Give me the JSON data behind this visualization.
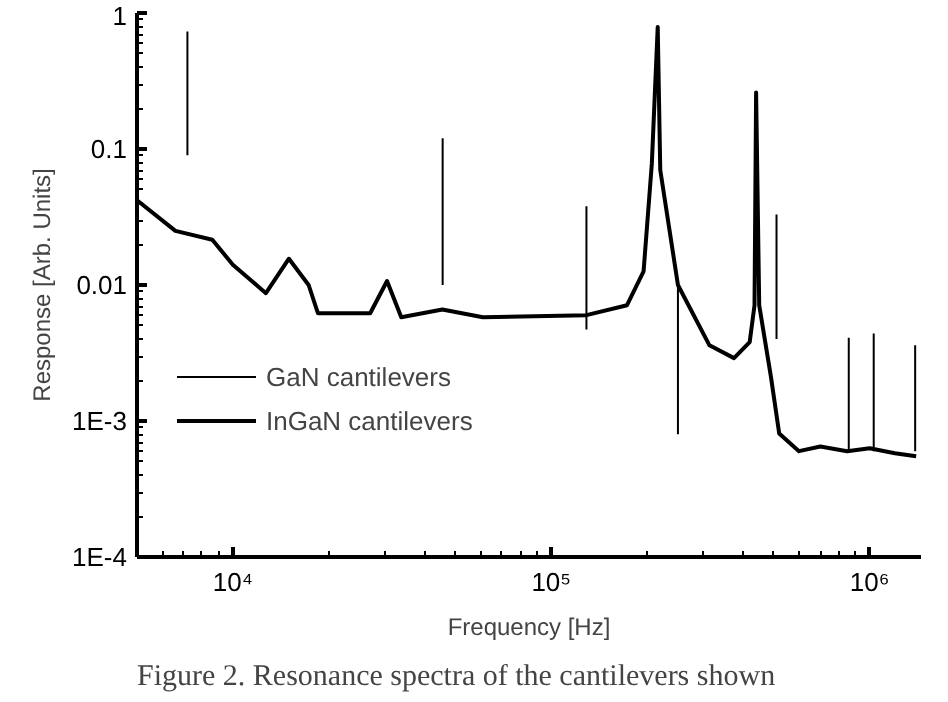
{
  "chart_data": {
    "type": "line",
    "xlabel": "Frequency [Hz]",
    "ylabel": "Response [Arb. Units]",
    "log": "xy",
    "grid": false,
    "legend": "left",
    "xlim": [
      5000,
      1450000
    ],
    "ylim": [
      0.0001,
      1
    ],
    "xticks": [
      {
        "value": 10000,
        "label": "10⁴"
      },
      {
        "value": 100000,
        "label": "10⁵"
      },
      {
        "value": 1000000,
        "label": "10⁶"
      }
    ],
    "yticks": [
      {
        "value": 0.0001,
        "label": "1E-4"
      },
      {
        "value": 0.001,
        "label": "1E-3"
      },
      {
        "value": 0.01,
        "label": "0.01"
      },
      {
        "value": 0.1,
        "label": "0.1"
      },
      {
        "value": 1,
        "label": "1"
      }
    ],
    "series": [
      {
        "name": "GaN cantilevers",
        "color": "#000000",
        "x": [
          7200,
          7200,
          null,
          45600,
          45600,
          null,
          129000,
          129000,
          null,
          250000,
          250000,
          null,
          510000,
          510000,
          null,
          860000,
          860000,
          null,
          1030000,
          1030000,
          null,
          1390000,
          1390000
        ],
        "values": [
          0.09,
          0.73,
          null,
          0.01,
          0.12,
          null,
          0.0047,
          0.038,
          null,
          0.0008,
          0.0106,
          null,
          0.004,
          0.033,
          null,
          0.0006,
          0.0041,
          null,
          0.0006,
          0.0044,
          null,
          0.0006,
          0.0036
        ]
      },
      {
        "name": "InGaN cantilevers",
        "color": "#000000",
        "x": [
          5000,
          6600,
          8620,
          10000,
          12700,
          15000,
          17300,
          18500,
          27000,
          30500,
          33800,
          45500,
          61000,
          129000,
          173000,
          195000,
          207000,
          216000,
          220000,
          250000,
          314000,
          375000,
          420000,
          435000,
          440000,
          450000,
          490000,
          520000,
          600000,
          700000,
          850000,
          1000000,
          1200000,
          1400000
        ],
        "values": [
          0.042,
          0.025,
          0.0215,
          0.0141,
          0.0087,
          0.0156,
          0.01,
          0.0062,
          0.0062,
          0.0107,
          0.0058,
          0.0066,
          0.0058,
          0.006,
          0.0071,
          0.0126,
          0.078,
          0.79,
          0.07,
          0.01,
          0.0036,
          0.0029,
          0.0038,
          0.0071,
          0.26,
          0.0071,
          0.0021,
          0.00081,
          0.0006,
          0.00065,
          0.0006,
          0.00063,
          0.00058,
          0.00055
        ]
      }
    ],
    "annotations": [
      "Figure 2.  Resonance spectra of the cantilevers shown"
    ]
  }
}
